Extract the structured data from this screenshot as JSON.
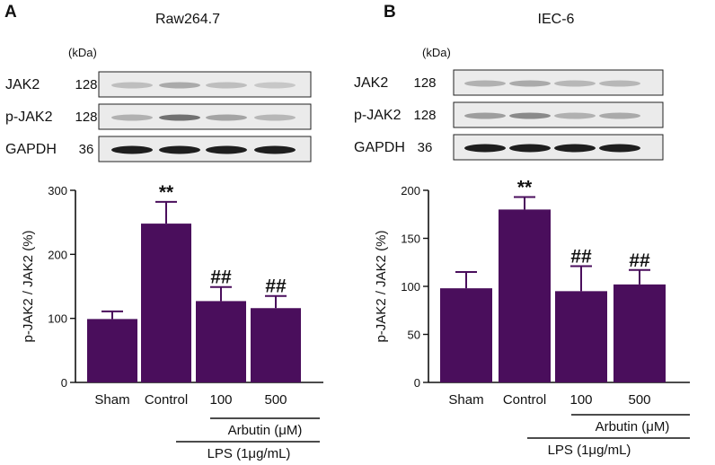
{
  "panels": [
    {
      "letter": "A",
      "cell_line": "Raw264.7",
      "blot": {
        "unit_label": "(kDa)",
        "rows": [
          {
            "protein": "JAK2",
            "mw": "128"
          },
          {
            "protein": "p-JAK2",
            "mw": "128"
          },
          {
            "protein": "GAPDH",
            "mw": "36"
          }
        ]
      },
      "treatment_label": "Arbutin (μM)",
      "lps_label": "LPS (1μg/mL)",
      "chart_data": {
        "type": "bar",
        "categories": [
          "Sham",
          "Control",
          "100",
          "500"
        ],
        "values": [
          99,
          248,
          127,
          116
        ],
        "errors": [
          12,
          34,
          22,
          19
        ],
        "significance": [
          "",
          "**",
          "##",
          "##"
        ],
        "ylabel": "p-JAK2 / JAK2 (%)",
        "xlabel": "",
        "ylim": [
          0,
          300
        ],
        "yticks": [
          "0",
          "100",
          "200",
          "300"
        ],
        "grid": false,
        "bar_color": "#4a0e5c"
      }
    },
    {
      "letter": "B",
      "cell_line": "IEC-6",
      "blot": {
        "unit_label": "(kDa)",
        "rows": [
          {
            "protein": "JAK2",
            "mw": "128"
          },
          {
            "protein": "p-JAK2",
            "mw": "128"
          },
          {
            "protein": "GAPDH",
            "mw": "36"
          }
        ]
      },
      "treatment_label": "Arbutin (μM)",
      "lps_label": "LPS (1μg/mL)",
      "chart_data": {
        "type": "bar",
        "categories": [
          "Sham",
          "Control",
          "100",
          "500"
        ],
        "values": [
          98,
          180,
          95,
          102
        ],
        "errors": [
          17,
          13,
          26,
          15
        ],
        "significance": [
          "",
          "**",
          "##",
          "##"
        ],
        "ylabel": "p-JAK2 / JAK2 (%)",
        "xlabel": "",
        "ylim": [
          0,
          200
        ],
        "yticks": [
          "0",
          "50",
          "100",
          "150",
          "200"
        ],
        "grid": false,
        "bar_color": "#4a0e5c"
      }
    }
  ]
}
